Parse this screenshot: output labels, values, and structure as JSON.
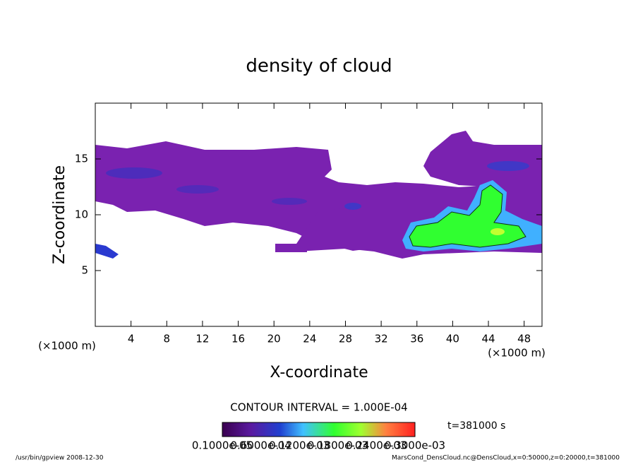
{
  "chart_data": {
    "type": "contour",
    "title": "density of cloud",
    "x_label": "X-coordinate",
    "y_label": "Z-coordinate",
    "x_unit_left": "(×1000 m)",
    "x_unit_right": "(×1000 m)",
    "xlim": [
      0,
      50
    ],
    "ylim": [
      0,
      20
    ],
    "xticks": [
      4,
      8,
      12,
      16,
      20,
      24,
      28,
      32,
      36,
      40,
      44,
      48
    ],
    "yticks": [
      5,
      10,
      15
    ],
    "contour_interval": "CONTOUR INTERVAL = 1.000E-04",
    "time_label": "t=381000 s",
    "colorbar_labels": [
      "0.1000e-05",
      "0.6000e-04",
      "0.1200e-03",
      "0.1800e-03",
      "0.2400e-03",
      "0.3000e-03"
    ],
    "footer_left": "/usr/bin/gpview   2008-12-30",
    "footer_right": "MarsCond_DensCloud.nc@DensCloud,x=0:50000,z=0:20000,t=381000"
  }
}
